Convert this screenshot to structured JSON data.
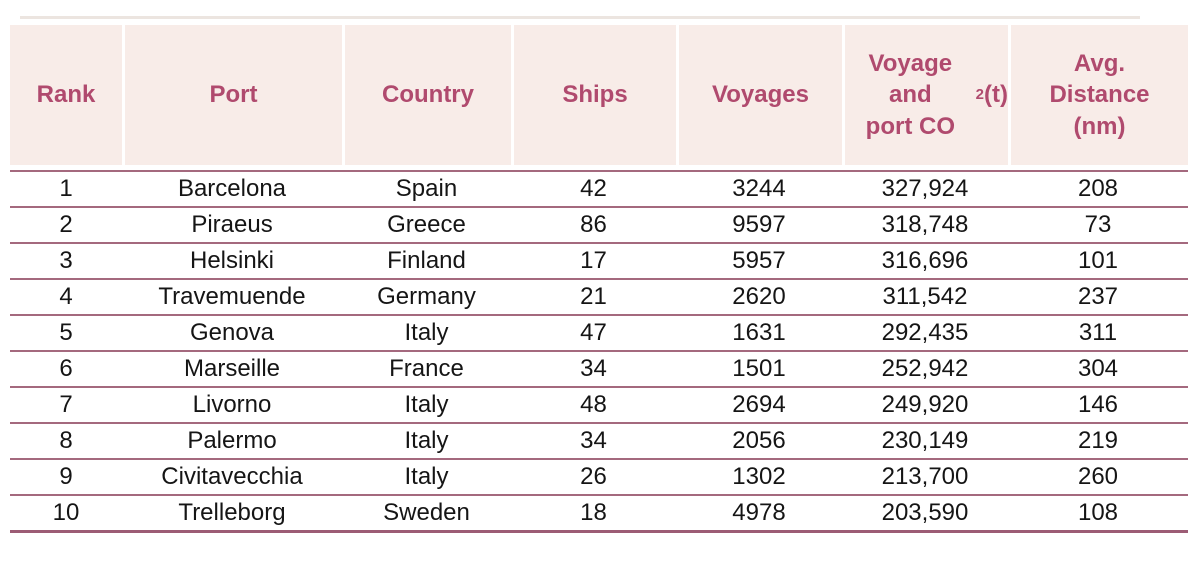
{
  "colors": {
    "header_bg": "#f8ece8",
    "header_text": "#b04a6e",
    "row_separator": "#a4697e",
    "bottom_border": "#9c5c75",
    "body_text": "#151515"
  },
  "chart_data": {
    "type": "table",
    "title": "",
    "columns": [
      {
        "id": "rank",
        "label": "Rank"
      },
      {
        "id": "port",
        "label": "Port"
      },
      {
        "id": "country",
        "label": "Country"
      },
      {
        "id": "ships",
        "label": "Ships"
      },
      {
        "id": "voyages",
        "label": "Voyages"
      },
      {
        "id": "co2",
        "label": "Voyage and port CO2 (t)",
        "label_pre": "Voyage and\nport CO",
        "label_sub": "2",
        "label_post": " (t)"
      },
      {
        "id": "avg_distance",
        "label": "Avg.\nDistance\n(nm)"
      }
    ],
    "rows": [
      [
        "1",
        "Barcelona",
        "Spain",
        "42",
        "3244",
        "327,924",
        "208"
      ],
      [
        "2",
        "Piraeus",
        "Greece",
        "86",
        "9597",
        "318,748",
        "73"
      ],
      [
        "3",
        "Helsinki",
        "Finland",
        "17",
        "5957",
        "316,696",
        "101"
      ],
      [
        "4",
        "Travemuende",
        "Germany",
        "21",
        "2620",
        "311,542",
        "237"
      ],
      [
        "5",
        "Genova",
        "Italy",
        "47",
        "1631",
        "292,435",
        "311"
      ],
      [
        "6",
        "Marseille",
        "France",
        "34",
        "1501",
        "252,942",
        "304"
      ],
      [
        "7",
        "Livorno",
        "Italy",
        "48",
        "2694",
        "249,920",
        "146"
      ],
      [
        "8",
        "Palermo",
        "Italy",
        "34",
        "2056",
        "230,149",
        "219"
      ],
      [
        "9",
        "Civitavecchia",
        "Italy",
        "26",
        "1302",
        "213,700",
        "260"
      ],
      [
        "10",
        "Trelleborg",
        "Sweden",
        "18",
        "4978",
        "203,590",
        "108"
      ]
    ]
  }
}
